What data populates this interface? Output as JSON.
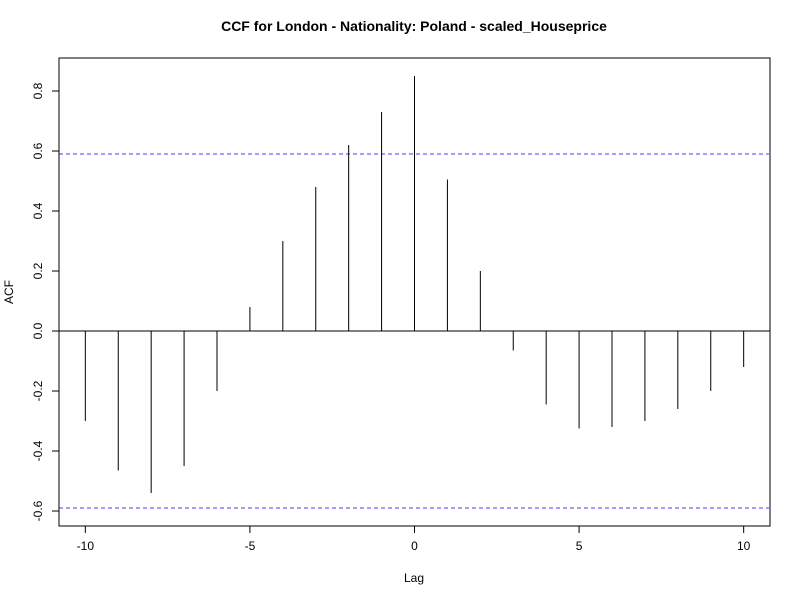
{
  "chart_data": {
    "type": "bar",
    "title": "CCF for London - Nationality: Poland - scaled_Houseprice",
    "xlabel": "Lag",
    "ylabel": "ACF",
    "xlim": [
      -10.8,
      10.8
    ],
    "ylim": [
      -0.65,
      0.91
    ],
    "x_ticks": [
      -10,
      -5,
      0,
      5,
      10
    ],
    "x_tick_labels": [
      "-10",
      "-5",
      "0",
      "5",
      "10"
    ],
    "y_ticks": [
      -0.6,
      -0.4,
      -0.2,
      0.0,
      0.2,
      0.4,
      0.6,
      0.8
    ],
    "y_tick_labels": [
      "-0.6",
      "-0.4",
      "-0.2",
      "0.0",
      "0.2",
      "0.4",
      "0.6",
      "0.8"
    ],
    "x": [
      -10,
      -9,
      -8,
      -7,
      -6,
      -5,
      -4,
      -3,
      -2,
      -1,
      0,
      1,
      2,
      3,
      4,
      5,
      6,
      7,
      8,
      9,
      10
    ],
    "values": [
      -0.3,
      -0.465,
      -0.54,
      -0.45,
      -0.2,
      0.08,
      0.3,
      0.48,
      0.62,
      0.73,
      0.85,
      0.505,
      0.2,
      -0.065,
      -0.245,
      -0.325,
      -0.32,
      -0.3,
      -0.26,
      -0.2,
      -0.12
    ],
    "confidence_bounds": [
      0.59,
      -0.59
    ],
    "bound_color": "#6666ff",
    "bar_color": "#000000",
    "grid": false,
    "legend": "none"
  }
}
